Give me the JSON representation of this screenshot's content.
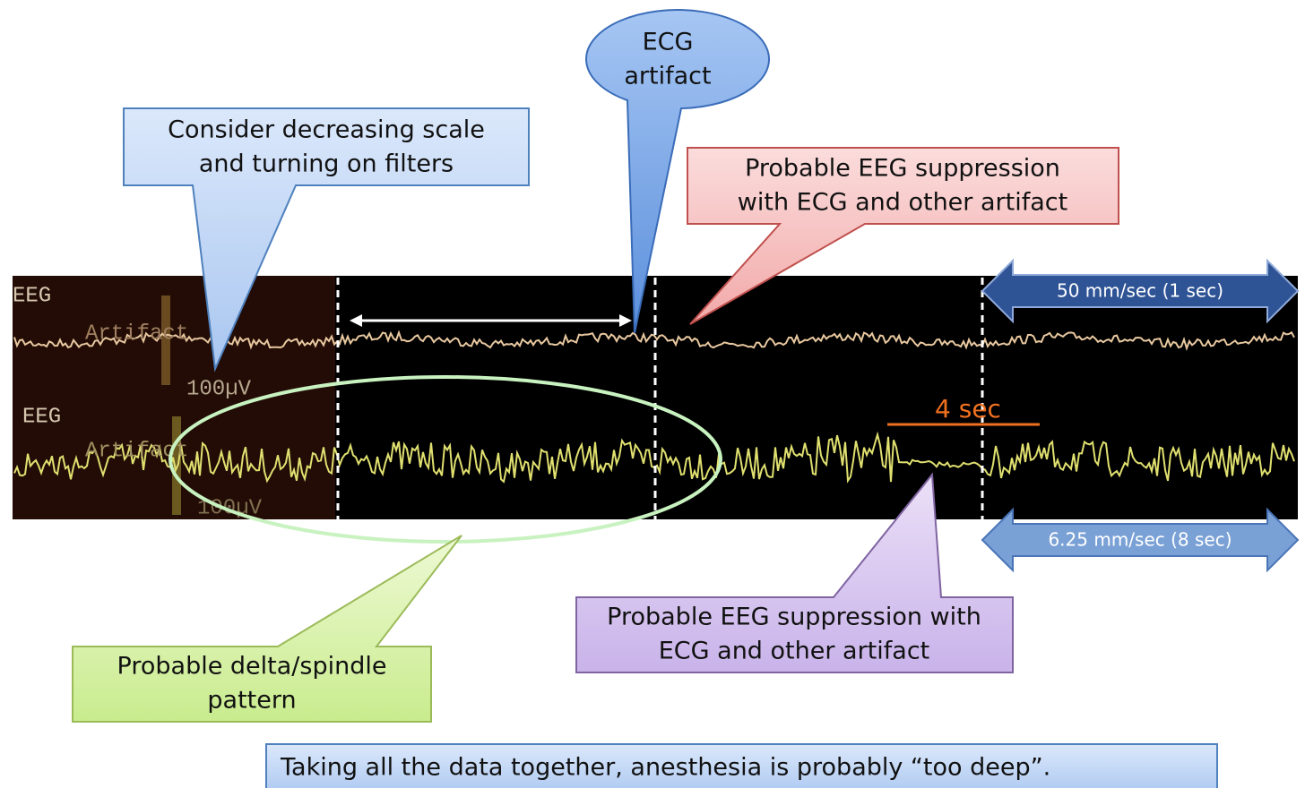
{
  "strip": {
    "top_channel": "EEG",
    "top_artifact": "Artifact",
    "top_scale": "100µV",
    "bottom_channel": "EEG",
    "bottom_artifact": "Artifact",
    "bottom_scale": "100µV",
    "duration": "4 sec",
    "fast_speed": "50 mm/sec (1 sec)",
    "slow_speed": "6.25 mm/sec (8 sec)"
  },
  "callouts": {
    "scale": [
      "Consider decreasing scale",
      "and turning on filters"
    ],
    "ecg": [
      "ECG",
      "artifact"
    ],
    "suppression_top": [
      "Probable EEG suppression",
      "with ECG and other artifact"
    ],
    "delta": [
      "Probable delta/spindle",
      "pattern"
    ],
    "suppression_bottom": [
      "Probable EEG suppression with",
      "ECG and other artifact"
    ]
  },
  "conclusion": "Taking all the data together, anesthesia is probably “too deep”."
}
